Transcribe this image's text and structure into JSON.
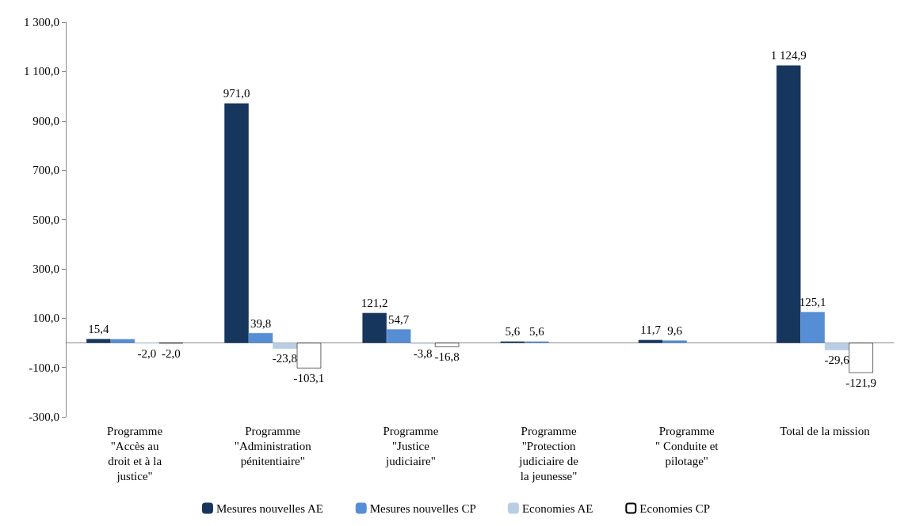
{
  "chart_data": {
    "type": "bar",
    "categories": [
      "Programme\n\"Accès au\ndroit et à la\njustice\"",
      "Programme\n\"Administration\npénitentiaire\"",
      "Programme\n\"Justice\njudiciaire\"",
      "Programme\n\"Protection\njudiciaire de\nla jeunesse\"",
      "Programme\n\" Conduite et\npilotage\"",
      "Total de la mission"
    ],
    "series": [
      {
        "name": "Mesures nouvelles AE",
        "color": "#17365d",
        "values": [
          15.4,
          971.0,
          121.2,
          5.6,
          11.7,
          1124.9
        ],
        "value_labels": [
          "15,4",
          "971,0",
          "121,2",
          "5,6",
          "11,7",
          "1 124,9"
        ]
      },
      {
        "name": "Mesures nouvelles CP",
        "color": "#558ed5",
        "values": [
          15,
          39.8,
          54.7,
          5.6,
          9.6,
          125.1
        ],
        "value_labels": [
          null,
          "39,8",
          "54,7",
          "5,6",
          "9,6",
          "125,1"
        ]
      },
      {
        "name": "Economies AE",
        "color": "#b9cde5",
        "values": [
          -2.0,
          -23.8,
          -3.8,
          null,
          null,
          -29.6
        ],
        "value_labels": [
          "-2,0",
          "-23,8",
          "-3,8",
          null,
          null,
          "-29,6"
        ]
      },
      {
        "name": "Economies CP",
        "color": "#ffffff",
        "values": [
          -2.0,
          -103.1,
          -16.8,
          null,
          null,
          -121.9
        ],
        "value_labels": [
          "-2,0",
          "-103,1",
          "-16,8",
          null,
          null,
          "-121,9"
        ]
      }
    ],
    "ylim": [
      -300,
      1300
    ],
    "yticks": [
      {
        "value": -300,
        "label": "-300,0"
      },
      {
        "value": -100,
        "label": "-100,0"
      },
      {
        "value": 100,
        "label": "100,0"
      },
      {
        "value": 300,
        "label": "300,0"
      },
      {
        "value": 500,
        "label": "500,0"
      },
      {
        "value": 700,
        "label": "700,0"
      },
      {
        "value": 900,
        "label": "900,0"
      },
      {
        "value": 1100,
        "label": "1 100,0"
      },
      {
        "value": 1300,
        "label": "1 300,0"
      }
    ],
    "grid": false,
    "legend": "bottom"
  }
}
